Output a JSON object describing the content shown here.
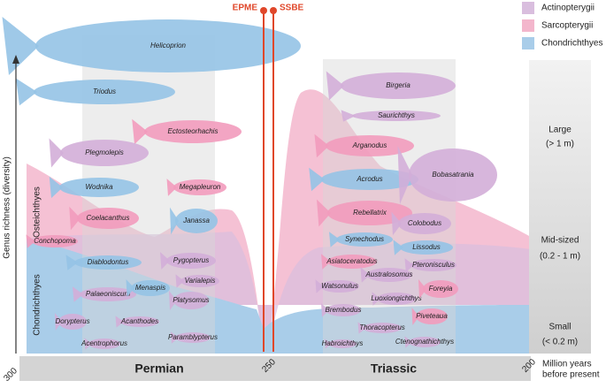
{
  "legend": [
    "Actinopterygii",
    "Sarcopterygii",
    "Chondrichthyes"
  ],
  "events": [
    "EPME",
    "SSBE"
  ],
  "y_axis_label": "Genus richness (diversity)",
  "group_labels": [
    "Osteichthyes",
    "Chondrichthyes"
  ],
  "periods": [
    "Permian",
    "Triassic"
  ],
  "x_ticks": [
    "300",
    "250",
    "200"
  ],
  "x_axis_label": [
    "Million years",
    "before present"
  ],
  "size_classes": [
    {
      "name": "Large",
      "range": "(> 1 m)"
    },
    {
      "name": "Mid-sized",
      "range": "(0.2 - 1 m)"
    },
    {
      "name": "Small",
      "range": "(< 0.2 m)"
    }
  ],
  "taxa": [
    "Helicoprion",
    "Triodus",
    "Ectosteorhachis",
    "Plegmolepis",
    "Wodnika",
    "Megapleuron",
    "Coelacanthus",
    "Janassa",
    "Conchopoma",
    "Diablodontus",
    "Pygopterus",
    "Palaeoniscum",
    "Menaspis",
    "Varialepis",
    "Platysomus",
    "Dorypterus",
    "Acanthodes",
    "Paramblypterus",
    "Acentrophorus",
    "Birgeria",
    "Saurichthys",
    "Arganodus",
    "Acrodus",
    "Bobasatrania",
    "Rebellatrix",
    "Colobodus",
    "Synechodus",
    "Lissodus",
    "Asiatoceratodus",
    "Australosomus",
    "Pteronisculus",
    "Watsonulus",
    "Luoxiongichthys",
    "Foreyia",
    "Brembodus",
    "Piveteaua",
    "Thoracopterus",
    "Habroichthys",
    "Ctenognathichthys"
  ]
}
